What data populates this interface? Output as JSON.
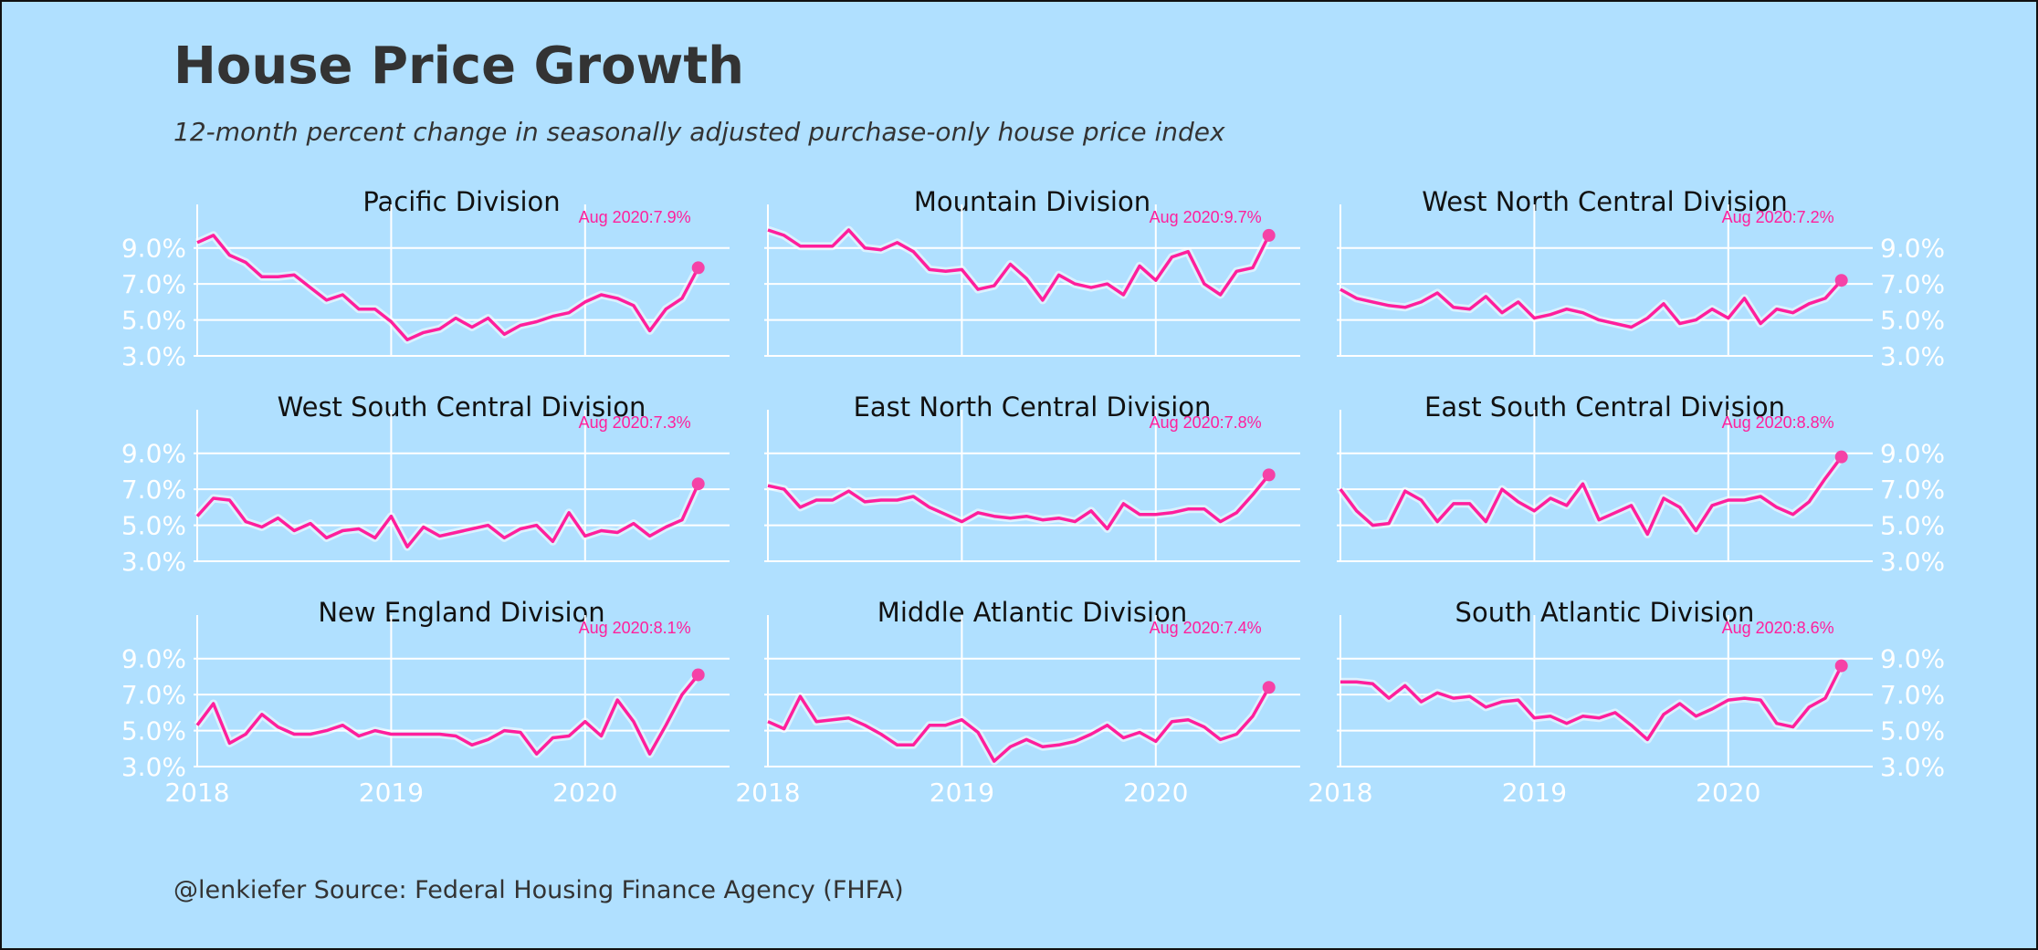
{
  "title": "House Price Growth",
  "subtitle": "12-month percent change in seasonally adjusted purchase-only house price index",
  "caption": "@lenkiefer Source: Federal Housing Finance Agency (FHFA)",
  "colors": {
    "background": "#b0e0ff",
    "line": "#ff1f9c",
    "grid": "#ffffff",
    "text": "#333333"
  },
  "chart_data": {
    "type": "line",
    "facet_layout": "3x3",
    "x_ticks": [
      "2018",
      "2019",
      "2020"
    ],
    "y_ticks": [
      "3.0%",
      "5.0%",
      "7.0%",
      "9.0%"
    ],
    "ylim": [
      3.0,
      10.0
    ],
    "x_start": "2018-01",
    "x_end": "2020-08",
    "frequency": "monthly",
    "panels": [
      {
        "name": "Pacific Division",
        "annotation": "Aug 2020:7.9%",
        "values": [
          9.3,
          9.7,
          8.6,
          8.2,
          7.4,
          7.4,
          7.5,
          6.8,
          6.1,
          6.4,
          5.6,
          5.6,
          4.9,
          3.9,
          4.3,
          4.5,
          5.1,
          4.6,
          5.1,
          4.2,
          4.7,
          4.9,
          5.2,
          5.4,
          6.0,
          6.4,
          6.2,
          5.8,
          4.4,
          5.6,
          6.2,
          7.9
        ]
      },
      {
        "name": "Mountain Division",
        "annotation": "Aug 2020:9.7%",
        "values": [
          10.0,
          9.7,
          9.1,
          9.1,
          9.1,
          10.0,
          9.0,
          8.9,
          9.3,
          8.8,
          7.8,
          7.7,
          7.8,
          6.7,
          6.9,
          8.1,
          7.3,
          6.1,
          7.5,
          7.0,
          6.8,
          7.0,
          6.4,
          8.0,
          7.2,
          8.5,
          8.8,
          7.0,
          6.4,
          7.7,
          7.9,
          9.7
        ]
      },
      {
        "name": "West North Central Division",
        "annotation": "Aug 2020:7.2%",
        "values": [
          6.7,
          6.2,
          6.0,
          5.8,
          5.7,
          6.0,
          6.5,
          5.7,
          5.6,
          6.3,
          5.4,
          6.0,
          5.1,
          5.3,
          5.6,
          5.4,
          5.0,
          4.8,
          4.6,
          5.1,
          5.9,
          4.8,
          5.0,
          5.6,
          5.1,
          6.2,
          4.8,
          5.6,
          5.4,
          5.9,
          6.2,
          7.2
        ]
      },
      {
        "name": "West South Central Division",
        "annotation": "Aug 2020:7.3%",
        "values": [
          5.5,
          6.5,
          6.4,
          5.2,
          4.9,
          5.4,
          4.7,
          5.1,
          4.3,
          4.7,
          4.8,
          4.3,
          5.5,
          3.8,
          4.9,
          4.4,
          4.6,
          4.8,
          5.0,
          4.3,
          4.8,
          5.0,
          4.1,
          5.7,
          4.4,
          4.7,
          4.6,
          5.1,
          4.4,
          4.9,
          5.3,
          7.3
        ]
      },
      {
        "name": "East North Central Division",
        "annotation": "Aug 2020:7.8%",
        "values": [
          7.2,
          7.0,
          6.0,
          6.4,
          6.4,
          6.9,
          6.3,
          6.4,
          6.4,
          6.6,
          6.0,
          5.6,
          5.2,
          5.7,
          5.5,
          5.4,
          5.5,
          5.3,
          5.4,
          5.2,
          5.8,
          4.8,
          6.2,
          5.6,
          5.6,
          5.7,
          5.9,
          5.9,
          5.2,
          5.7,
          6.7,
          7.8
        ]
      },
      {
        "name": "East South Central Division",
        "annotation": "Aug 2020:8.8%",
        "values": [
          7.0,
          5.8,
          5.0,
          5.1,
          6.9,
          6.4,
          5.2,
          6.2,
          6.2,
          5.2,
          7.0,
          6.3,
          5.8,
          6.5,
          6.1,
          7.3,
          5.3,
          5.7,
          6.1,
          4.5,
          6.5,
          6.0,
          4.7,
          6.1,
          6.4,
          6.4,
          6.6,
          6.0,
          5.6,
          6.3,
          7.6,
          8.8
        ]
      },
      {
        "name": "New England Division",
        "annotation": "Aug 2020:8.1%",
        "values": [
          5.3,
          6.5,
          4.3,
          4.8,
          5.9,
          5.2,
          4.8,
          4.8,
          5.0,
          5.3,
          4.7,
          5.0,
          4.8,
          4.8,
          4.8,
          4.8,
          4.7,
          4.2,
          4.5,
          5.0,
          4.9,
          3.7,
          4.6,
          4.7,
          5.5,
          4.7,
          6.7,
          5.5,
          3.7,
          5.3,
          7.0,
          8.1
        ]
      },
      {
        "name": "Middle Atlantic Division",
        "annotation": "Aug 2020:7.4%",
        "values": [
          5.5,
          5.1,
          6.9,
          5.5,
          5.6,
          5.7,
          5.3,
          4.8,
          4.2,
          4.2,
          5.3,
          5.3,
          5.6,
          4.9,
          3.3,
          4.1,
          4.5,
          4.1,
          4.2,
          4.4,
          4.8,
          5.3,
          4.6,
          4.9,
          4.4,
          5.5,
          5.6,
          5.2,
          4.5,
          4.8,
          5.8,
          7.4
        ]
      },
      {
        "name": "South Atlantic Division",
        "annotation": "Aug 2020:8.6%",
        "values": [
          7.7,
          7.7,
          7.6,
          6.8,
          7.5,
          6.6,
          7.1,
          6.8,
          6.9,
          6.3,
          6.6,
          6.7,
          5.7,
          5.8,
          5.4,
          5.8,
          5.7,
          6.0,
          5.3,
          4.5,
          5.9,
          6.5,
          5.8,
          6.2,
          6.7,
          6.8,
          6.7,
          5.4,
          5.2,
          6.3,
          6.8,
          8.6
        ]
      }
    ]
  }
}
